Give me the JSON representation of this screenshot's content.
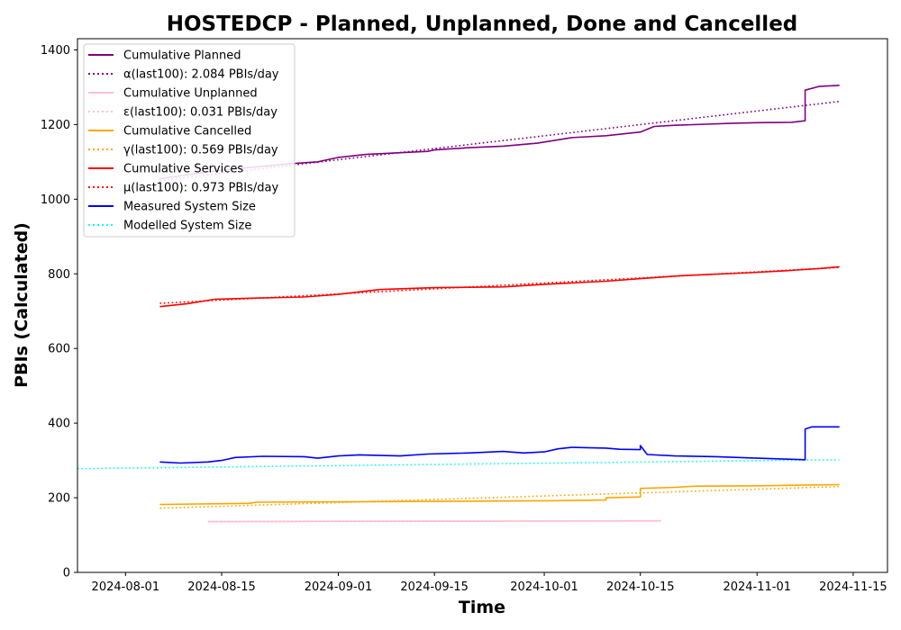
{
  "chart_data": {
    "type": "line",
    "title": "HOSTEDCP - Planned, Unplanned, Done  and Cancelled",
    "xlabel": "Time",
    "ylabel": "PBIs (Calculated)",
    "xlim": [
      "2024-07-25",
      "2024-11-20"
    ],
    "ylim": [
      0,
      1430
    ],
    "x_ticks": [
      "2024-08-01",
      "2024-08-15",
      "2024-09-01",
      "2024-09-15",
      "2024-10-01",
      "2024-10-15",
      "2024-11-01",
      "2024-11-15"
    ],
    "y_ticks": [
      0,
      200,
      400,
      600,
      800,
      1000,
      1200,
      1400
    ],
    "grid": false,
    "legend_position": "top-left",
    "series": [
      {
        "name": "Cumulative Planned",
        "color": "#800080",
        "style": "solid",
        "points": [
          [
            "2024-08-06",
            1055
          ],
          [
            "2024-08-15",
            1078
          ],
          [
            "2024-08-25",
            1095
          ],
          [
            "2024-08-29",
            1100
          ],
          [
            "2024-09-01",
            1112
          ],
          [
            "2024-09-05",
            1120
          ],
          [
            "2024-09-14",
            1128
          ],
          [
            "2024-09-15",
            1132
          ],
          [
            "2024-09-20",
            1138
          ],
          [
            "2024-09-25",
            1142
          ],
          [
            "2024-09-30",
            1150
          ],
          [
            "2024-10-05",
            1165
          ],
          [
            "2024-10-10",
            1170
          ],
          [
            "2024-10-15",
            1180
          ],
          [
            "2024-10-17",
            1195
          ],
          [
            "2024-10-20",
            1198
          ],
          [
            "2024-10-28",
            1203
          ],
          [
            "2024-11-01",
            1205
          ],
          [
            "2024-11-06",
            1206
          ],
          [
            "2024-11-08",
            1210
          ],
          [
            "2024-11-08",
            1292
          ],
          [
            "2024-11-10",
            1302
          ],
          [
            "2024-11-13",
            1305
          ]
        ]
      },
      {
        "name": "α(last100): 2.084 PBIs/day",
        "color": "#800080",
        "style": "dotted",
        "points": [
          [
            "2024-08-06",
            1050
          ],
          [
            "2024-11-13",
            1262
          ]
        ]
      },
      {
        "name": "Cumulative Unplanned",
        "color": "#ffc0cb",
        "style": "solid",
        "points": [
          [
            "2024-08-13",
            136
          ],
          [
            "2024-09-15",
            137
          ],
          [
            "2024-10-18",
            138
          ]
        ]
      },
      {
        "name": "ε(last100): 0.031 PBIs/day",
        "color": "#ffc0cb",
        "style": "dotted",
        "points": [
          [
            "2024-08-13",
            137
          ],
          [
            "2024-10-18",
            139
          ]
        ]
      },
      {
        "name": "Cumulative Cancelled",
        "color": "#ffa500",
        "style": "solid",
        "points": [
          [
            "2024-08-06",
            182
          ],
          [
            "2024-08-19",
            185
          ],
          [
            "2024-08-20",
            188
          ],
          [
            "2024-09-01",
            189
          ],
          [
            "2024-10-01",
            192
          ],
          [
            "2024-10-10",
            194
          ],
          [
            "2024-10-10",
            200
          ],
          [
            "2024-10-15",
            202
          ],
          [
            "2024-10-15",
            225
          ],
          [
            "2024-10-20",
            228
          ],
          [
            "2024-10-23",
            231
          ],
          [
            "2024-11-01",
            232
          ],
          [
            "2024-11-13",
            235
          ]
        ]
      },
      {
        "name": "γ(last100): 0.569 PBIs/day",
        "color": "#ffa500",
        "style": "dotted",
        "points": [
          [
            "2024-08-06",
            172
          ],
          [
            "2024-11-13",
            230
          ]
        ]
      },
      {
        "name": "Cumulative Services",
        "color": "#ff0000",
        "style": "solid",
        "points": [
          [
            "2024-08-06",
            712
          ],
          [
            "2024-08-10",
            720
          ],
          [
            "2024-08-14",
            732
          ],
          [
            "2024-08-20",
            735
          ],
          [
            "2024-08-27",
            738
          ],
          [
            "2024-09-01",
            745
          ],
          [
            "2024-09-07",
            758
          ],
          [
            "2024-09-15",
            763
          ],
          [
            "2024-09-25",
            765
          ],
          [
            "2024-10-01",
            772
          ],
          [
            "2024-10-10",
            780
          ],
          [
            "2024-10-15",
            787
          ],
          [
            "2024-10-21",
            795
          ],
          [
            "2024-10-31",
            803
          ],
          [
            "2024-11-05",
            808
          ],
          [
            "2024-11-10",
            814
          ],
          [
            "2024-11-13",
            819
          ]
        ]
      },
      {
        "name": "μ(last100): 0.973 PBIs/day",
        "color": "#ff0000",
        "style": "dotted",
        "points": [
          [
            "2024-08-06",
            721
          ],
          [
            "2024-11-13",
            817
          ]
        ]
      },
      {
        "name": "Measured System Size",
        "color": "#0000ff",
        "style": "solid",
        "points": [
          [
            "2024-08-06",
            296
          ],
          [
            "2024-08-09",
            293
          ],
          [
            "2024-08-13",
            296
          ],
          [
            "2024-08-15",
            300
          ],
          [
            "2024-08-17",
            308
          ],
          [
            "2024-08-21",
            311
          ],
          [
            "2024-08-27",
            310
          ],
          [
            "2024-08-29",
            306
          ],
          [
            "2024-09-01",
            312
          ],
          [
            "2024-09-04",
            315
          ],
          [
            "2024-09-10",
            312
          ],
          [
            "2024-09-14",
            317
          ],
          [
            "2024-09-20",
            320
          ],
          [
            "2024-09-25",
            324
          ],
          [
            "2024-09-28",
            320
          ],
          [
            "2024-10-01",
            323
          ],
          [
            "2024-10-03",
            331
          ],
          [
            "2024-10-05",
            335
          ],
          [
            "2024-10-10",
            333
          ],
          [
            "2024-10-12",
            330
          ],
          [
            "2024-10-15",
            329
          ],
          [
            "2024-10-15",
            340
          ],
          [
            "2024-10-16",
            316
          ],
          [
            "2024-10-20",
            312
          ],
          [
            "2024-10-26",
            310
          ],
          [
            "2024-11-01",
            306
          ],
          [
            "2024-11-08",
            302
          ],
          [
            "2024-11-08",
            384
          ],
          [
            "2024-11-09",
            390
          ],
          [
            "2024-11-13",
            390
          ]
        ]
      },
      {
        "name": "Modelled System Size",
        "color": "#00ffff",
        "style": "dotted",
        "points": [
          [
            "2024-07-25",
            278
          ],
          [
            "2024-11-13",
            302
          ]
        ]
      }
    ],
    "legend": [
      {
        "label": "Cumulative Planned",
        "color": "#800080",
        "style": "solid"
      },
      {
        "label": "α(last100): 2.084 PBIs/day",
        "color": "#800080",
        "style": "dotted"
      },
      {
        "label": "Cumulative Unplanned",
        "color": "#ffc0cb",
        "style": "solid"
      },
      {
        "label": "ε(last100): 0.031 PBIs/day",
        "color": "#ffc0cb",
        "style": "dotted"
      },
      {
        "label": "Cumulative Cancelled",
        "color": "#ffa500",
        "style": "solid"
      },
      {
        "label": "γ(last100): 0.569 PBIs/day",
        "color": "#ffa500",
        "style": "dotted"
      },
      {
        "label": "Cumulative Services",
        "color": "#ff0000",
        "style": "solid"
      },
      {
        "label": "μ(last100): 0.973 PBIs/day",
        "color": "#ff0000",
        "style": "dotted"
      },
      {
        "label": "Measured System Size",
        "color": "#0000ff",
        "style": "solid"
      },
      {
        "label": "Modelled System Size",
        "color": "#00ffff",
        "style": "dotted"
      }
    ]
  }
}
